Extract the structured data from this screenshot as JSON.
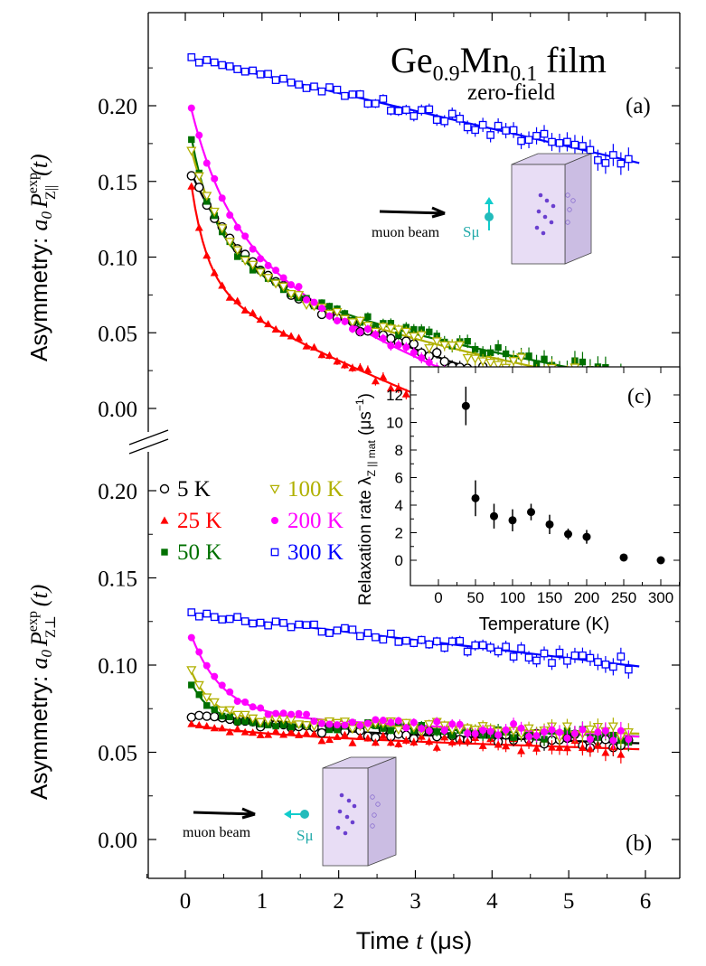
{
  "chart_data": [
    {
      "panel": "(a)",
      "type": "scatter",
      "title": "Ge0.9Mn0.1 film",
      "title_parts": {
        "base1": "Ge",
        "sub1": "0.9",
        "base2": "Mn",
        "sub2": "0.1",
        "rest": " film"
      },
      "subtitle": "zero-field",
      "panel_label": "(a)",
      "ylabel": "Asymmetry: a0 P_Z||^exp(t)",
      "ylabel_parts": {
        "prefix": "Asymmetry: ",
        "a": "a",
        "zero": "0",
        "P": "P",
        "sup": "exp",
        "sub": "Z||",
        "arg": "(t)"
      },
      "xlim": [
        -0.5,
        6.3
      ],
      "ylim": [
        -0.012,
        0.255
      ],
      "yticks": [
        "0.00",
        "0.05",
        "0.10",
        "0.15",
        "0.20"
      ],
      "ytick_values": [
        0,
        0.05,
        0.1,
        0.15,
        0.2
      ],
      "annotation": "muon beam",
      "spin_label": "Sμ",
      "series": [
        {
          "name": "5 K",
          "color": "#000000",
          "marker": "circle-open",
          "fit": {
            "a": 0.055,
            "b": 0.025,
            "l": 1.6,
            "c": 0.085,
            "k": 0.016
          }
        },
        {
          "name": "25 K",
          "color": "#ff0000",
          "marker": "triangle",
          "fit": {
            "a": 0.09,
            "b": 0.022,
            "l": 5.0,
            "c": 0.068,
            "k": 0.02
          }
        },
        {
          "name": "50 K",
          "color": "#007000",
          "marker": "square",
          "fit": {
            "a": 0.075,
            "b": 0.055,
            "l": 4.0,
            "c": 0.074,
            "k": 0.0095
          }
        },
        {
          "name": "100 K",
          "color": "#b0b000",
          "marker": "triangle-down-open",
          "fit": {
            "a": 0.055,
            "b": 0.06,
            "l": 3.0,
            "c": 0.072,
            "k": 0.01
          }
        },
        {
          "name": "200 K",
          "color": "#ff00ff",
          "marker": "circle",
          "fit": {
            "a": 0.065,
            "b": 0.06,
            "l": 2.5,
            "c": 0.09,
            "k": 0.02
          }
        },
        {
          "name": "300 K",
          "color": "#0000ff",
          "marker": "square-open",
          "fit": {
            "a": 0,
            "b": 0,
            "l": 1,
            "c": 0.232,
            "k": 0.0118
          }
        }
      ]
    },
    {
      "panel": "(b)",
      "type": "scatter",
      "panel_label": "(b)",
      "ylabel": "Asymmetry: a0 P_Z⊥^exp(t)",
      "ylabel_parts": {
        "prefix": "Asymmetry: ",
        "a": "a",
        "zero": "0",
        "P": "P",
        "sup": "exp",
        "sub": "Z⊥",
        "arg": "(t)"
      },
      "xlabel": "Time t (μs)",
      "xlabel_parts": {
        "prefix": "Time ",
        "t": "t",
        "suffix": " (μs)"
      },
      "xlim": [
        -0.5,
        6.3
      ],
      "ylim": [
        -0.023,
        0.215
      ],
      "xticks": [
        "0",
        "1",
        "2",
        "3",
        "4",
        "5",
        "6"
      ],
      "xtick_values": [
        0,
        1,
        2,
        3,
        4,
        5,
        6
      ],
      "yticks": [
        "0.00",
        "0.05",
        "0.10",
        "0.15",
        "0.20"
      ],
      "ytick_values": [
        0,
        0.05,
        0.1,
        0.15,
        0.2
      ],
      "annotation": "muon beam",
      "spin_label": "Sμ",
      "series": [
        {
          "name": "5 K",
          "color": "#000000",
          "marker": "circle-open",
          "fit": {
            "a": 0,
            "b": 0.008,
            "l": 1.0,
            "c": 0.064,
            "k": 0.0015
          }
        },
        {
          "name": "25 K",
          "color": "#ff0000",
          "marker": "triangle",
          "fit": {
            "a": 0,
            "b": 0.006,
            "l": 2.0,
            "c": 0.06,
            "k": 0.0014
          }
        },
        {
          "name": "50 K",
          "color": "#007000",
          "marker": "square",
          "fit": {
            "a": 0.03,
            "b": 0,
            "l": 4.0,
            "c": 0.068,
            "k": 0.0015
          }
        },
        {
          "name": "100 K",
          "color": "#b0b000",
          "marker": "triangle-down-open",
          "fit": {
            "a": 0.036,
            "b": 0,
            "l": 3.5,
            "c": 0.069,
            "k": 0.0014
          }
        },
        {
          "name": "200 K",
          "color": "#ff00ff",
          "marker": "circle",
          "fit": {
            "a": 0.055,
            "b": 0.0,
            "l": 2.5,
            "c": 0.072,
            "k": 0.0022
          }
        },
        {
          "name": "300 K",
          "color": "#0000ff",
          "marker": "square-open",
          "fit": {
            "a": 0,
            "b": 0,
            "l": 1,
            "c": 0.13,
            "k": 0.0052
          }
        }
      ]
    },
    {
      "panel": "(c)",
      "type": "scatter",
      "panel_label": "(c)",
      "xlabel": "Temperature (K)",
      "ylabel": "Relaxation rate λZ|| mat (μs−1)",
      "ylabel_parts": {
        "prefix": "Relaxation rate λ",
        "sub": "Z || mat",
        "unit": " (μs",
        "exp": "−1",
        "close": ")"
      },
      "xlim": [
        -40,
        320
      ],
      "ylim": [
        -1.5,
        14
      ],
      "xticks": [
        "0",
        "50",
        "100",
        "150",
        "200",
        "250",
        "300"
      ],
      "xtick_values": [
        0,
        50,
        100,
        150,
        200,
        250,
        300
      ],
      "yticks": [
        "0",
        "2",
        "4",
        "6",
        "8",
        "10",
        "12"
      ],
      "ytick_values": [
        0,
        2,
        4,
        6,
        8,
        10,
        12
      ],
      "points": [
        {
          "x": 37,
          "y": 11.2,
          "err": 1.4
        },
        {
          "x": 50,
          "y": 4.5,
          "err": 1.3
        },
        {
          "x": 75,
          "y": 3.2,
          "err": 0.9
        },
        {
          "x": 100,
          "y": 2.9,
          "err": 0.8
        },
        {
          "x": 125,
          "y": 3.5,
          "err": 0.6
        },
        {
          "x": 150,
          "y": 2.6,
          "err": 0.7
        },
        {
          "x": 175,
          "y": 1.9,
          "err": 0.4
        },
        {
          "x": 200,
          "y": 1.7,
          "err": 0.5
        },
        {
          "x": 250,
          "y": 0.2,
          "err": 0
        },
        {
          "x": 300,
          "y": 0.0,
          "err": 0
        }
      ]
    }
  ],
  "legend": {
    "labels": [
      "5 K",
      "25 K",
      "50 K",
      "100 K",
      "200 K",
      "300 K"
    ]
  }
}
